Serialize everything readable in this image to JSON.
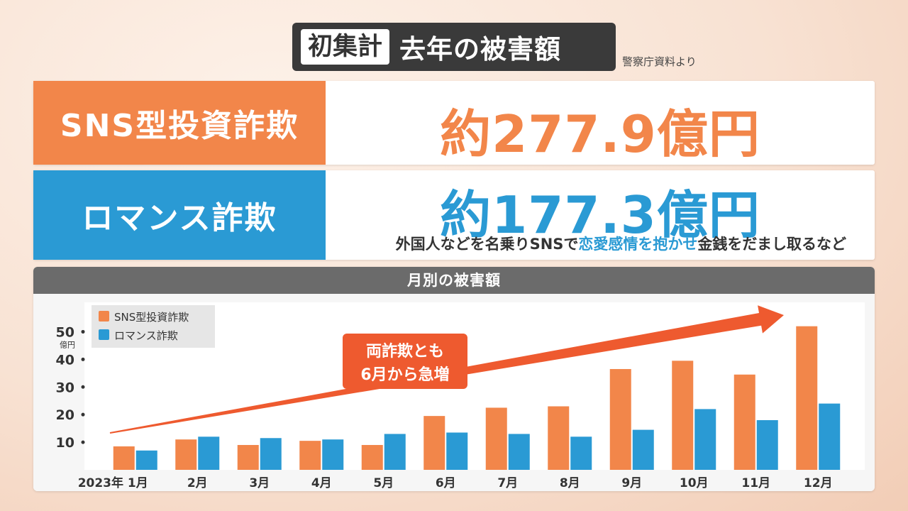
{
  "title": {
    "tag": "初集計",
    "main": "去年の被害額"
  },
  "source": "警察庁資料より",
  "rows": [
    {
      "label": "SNS型投資詐欺",
      "value": "約277.9億円"
    },
    {
      "label": "ロマンス詐欺",
      "value": "約177.3億円",
      "note_before": "外国人などを名乗りSNSで",
      "note_highlight": "恋愛感情を抱かせ",
      "note_after": "金銭をだまし取るなど"
    }
  ],
  "colors": {
    "sns": "#f2864a",
    "romance": "#2a9ad4",
    "arrow": "#ee5a2f",
    "callout": "#ee5a2f"
  },
  "chart_data": {
    "type": "bar",
    "title": "月別の被害額",
    "categories": [
      "2023年 1月",
      "2月",
      "3月",
      "4月",
      "5月",
      "6月",
      "7月",
      "8月",
      "9月",
      "10月",
      "11月",
      "12月"
    ],
    "series": [
      {
        "name": "SNS型投資詐欺",
        "values": [
          8.5,
          11,
          9,
          10.5,
          9,
          19.5,
          22.5,
          23,
          36.5,
          39.5,
          34.5,
          52
        ]
      },
      {
        "name": "ロマンス詐欺",
        "values": [
          7,
          12,
          11.5,
          11,
          13,
          13.5,
          13,
          12,
          14.5,
          22,
          18,
          24
        ]
      }
    ],
    "yticks": [
      10,
      20,
      30,
      40,
      50
    ],
    "yunit": "億円",
    "ylim": [
      0,
      55
    ],
    "legend_position": "top-left",
    "annotation": {
      "line1": "両詐欺とも",
      "line2": "6月から急増"
    }
  }
}
